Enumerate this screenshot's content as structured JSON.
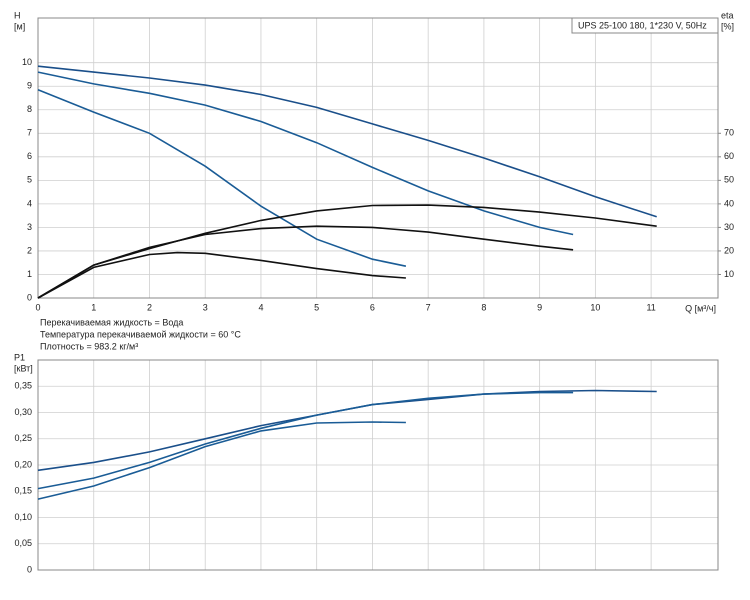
{
  "chart_data": [
    {
      "type": "line",
      "ylabel": "H",
      "yunit": "[м]",
      "y2label": "eta",
      "y2unit": "[%]",
      "xlabel": "Q [м³/ч]",
      "model_label": "UPS 25-100 180, 1*230 V, 50Hz",
      "notes": [
        "Перекачиваемая жидкость = Вода",
        "Температура перекачиваемой жидкости = 60 °C",
        "Плотность = 983.2 кг/м³"
      ],
      "xlim": [
        0,
        12.2
      ],
      "xticks": [
        0,
        1,
        2,
        3,
        4,
        5,
        6,
        7,
        8,
        9,
        10,
        11
      ],
      "ylim": [
        0,
        11.9
      ],
      "yticks": [
        0,
        1,
        2,
        3,
        4,
        5,
        6,
        7,
        8,
        9,
        10
      ],
      "y2lim": [
        0,
        119
      ],
      "y2ticks": [
        10,
        20,
        30,
        40,
        50,
        60,
        70
      ],
      "grid": true,
      "series": [
        {
          "color": "#1a4f8a",
          "x": [
            0,
            1,
            2,
            3,
            4,
            5,
            6,
            7,
            8,
            9,
            10,
            11.1
          ],
          "values": [
            9.85,
            9.6,
            9.35,
            9.05,
            8.65,
            8.1,
            7.4,
            6.7,
            5.95,
            5.15,
            4.3,
            3.45
          ]
        },
        {
          "color": "#1a5c96",
          "x": [
            0,
            1,
            2,
            3,
            4,
            5,
            6,
            7,
            8,
            9,
            9.6
          ],
          "values": [
            9.6,
            9.1,
            8.7,
            8.2,
            7.5,
            6.6,
            5.55,
            4.55,
            3.7,
            3.0,
            2.7
          ]
        },
        {
          "color": "#1a5c96",
          "x": [
            0,
            1,
            2,
            3,
            4,
            5,
            6,
            6.6
          ],
          "values": [
            8.85,
            7.9,
            7.0,
            5.6,
            3.9,
            2.5,
            1.65,
            1.35
          ]
        },
        {
          "color": "#111111",
          "axis": "y2",
          "x": [
            0,
            1,
            2,
            3,
            4,
            5,
            6,
            7,
            8,
            9,
            10,
            11.1
          ],
          "values": [
            0,
            14,
            21,
            27.5,
            33,
            37,
            39.3,
            39.5,
            38.5,
            36.5,
            34,
            30.5
          ]
        },
        {
          "color": "#111111",
          "axis": "y2",
          "x": [
            0,
            1,
            2,
            3,
            4,
            5,
            6,
            7,
            8,
            9,
            9.6
          ],
          "values": [
            0,
            14,
            21.5,
            27,
            29.5,
            30.5,
            30,
            28,
            25,
            22,
            20.5
          ]
        },
        {
          "color": "#111111",
          "axis": "y2",
          "x": [
            0,
            1,
            2,
            2.5,
            3,
            4,
            5,
            6,
            6.6
          ],
          "values": [
            0,
            13,
            18.5,
            19.3,
            19,
            16,
            12.5,
            9.5,
            8.5
          ]
        }
      ]
    },
    {
      "type": "line",
      "ylabel": "P1",
      "yunit": "[кВт]",
      "xlim": [
        0,
        12.2
      ],
      "xticks": [
        0,
        1,
        2,
        3,
        4,
        5,
        6,
        7,
        8,
        9,
        10,
        11
      ],
      "ylim": [
        0,
        0.4
      ],
      "yticks": [
        0,
        {
          "value": 0.05,
          "label": "0,05"
        },
        {
          "value": 0.1,
          "label": "0,10"
        },
        {
          "value": 0.15,
          "label": "0,15"
        },
        {
          "value": 0.2,
          "label": "0,20"
        },
        {
          "value": 0.25,
          "label": "0,25"
        },
        {
          "value": 0.3,
          "label": "0,30"
        },
        {
          "value": 0.35,
          "label": "0,35"
        }
      ],
      "grid": true,
      "series": [
        {
          "color": "#1a4f8a",
          "x": [
            0,
            1,
            2,
            3,
            4,
            5,
            6,
            7,
            8,
            9,
            10,
            11.1
          ],
          "values": [
            0.19,
            0.205,
            0.225,
            0.25,
            0.275,
            0.295,
            0.315,
            0.325,
            0.335,
            0.34,
            0.342,
            0.34
          ]
        },
        {
          "color": "#1a5c96",
          "x": [
            0,
            1,
            2,
            3,
            4,
            5,
            6,
            7,
            8,
            9,
            9.6
          ],
          "values": [
            0.155,
            0.175,
            0.205,
            0.24,
            0.27,
            0.295,
            0.315,
            0.327,
            0.335,
            0.338,
            0.338
          ]
        },
        {
          "color": "#1a5c96",
          "x": [
            0,
            1,
            2,
            3,
            4,
            5,
            6,
            6.6
          ],
          "values": [
            0.135,
            0.16,
            0.195,
            0.235,
            0.265,
            0.28,
            0.282,
            0.281
          ]
        }
      ]
    }
  ]
}
